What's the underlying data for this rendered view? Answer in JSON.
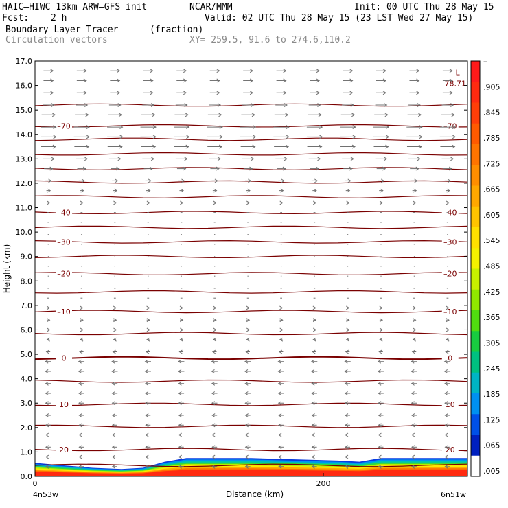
{
  "header": {
    "model": "HAIC–HIWC 13km ARW–GFS init",
    "center": "NCAR/MMM",
    "init": "Init: 00 UTC Thu 28 May 15",
    "fcst_label": "Fcst:",
    "fcst_value": "2 h",
    "valid": "Valid: 02 UTC Thu 28 May 15 (23 LST Wed 27 May 15)",
    "field": "Boundary Layer Tracer",
    "units": "(fraction)",
    "vectors": "Circulation vectors",
    "xy": "XY= 259.5, 91.6 to 274.6,110.2"
  },
  "chart_data": {
    "type": "heatmap",
    "ylabel": "Height (km)",
    "xlabel": "Distance (km)",
    "ylim": [
      0,
      17
    ],
    "xlim": [
      0,
      300
    ],
    "y_ticks": [
      "0.0",
      "1.0",
      "2.0",
      "3.0",
      "4.0",
      "5.0",
      "6.0",
      "7.0",
      "8.0",
      "9.0",
      "10.0",
      "11.0",
      "12.0",
      "13.0",
      "14.0",
      "15.0",
      "16.0",
      "17.0"
    ],
    "x_ticks": [
      {
        "value": 0,
        "label": "0"
      },
      {
        "value": 200,
        "label": "200"
      }
    ],
    "x_end_labels": {
      "left": "4n53w",
      "right": "6n51w"
    },
    "grid": false,
    "colorbar": {
      "labels": [
        "–",
        ".905",
        ".845",
        ".785",
        ".725",
        ".665",
        ".605",
        ".545",
        ".485",
        ".425",
        ".365",
        ".305",
        ".245",
        ".185",
        ".125",
        ".065",
        ".005"
      ],
      "colors": [
        "#ff1a1a",
        "#ff2a10",
        "#ff3e08",
        "#ff5a00",
        "#ff7400",
        "#ff8e00",
        "#ffa800",
        "#ffc400",
        "#ffe000",
        "#f4f000",
        "#c8f000",
        "#90e800",
        "#50dc10",
        "#18cc40",
        "#00c080",
        "#00b4c4",
        "#0090f0",
        "#0050e8",
        "#0020c0",
        "#ffffff"
      ]
    },
    "tracer_top_km": [
      {
        "x": 0,
        "y": 0.55
      },
      {
        "x": 20,
        "y": 0.45
      },
      {
        "x": 40,
        "y": 0.35
      },
      {
        "x": 60,
        "y": 0.3
      },
      {
        "x": 75,
        "y": 0.35
      },
      {
        "x": 90,
        "y": 0.6
      },
      {
        "x": 105,
        "y": 0.75
      },
      {
        "x": 150,
        "y": 0.75
      },
      {
        "x": 210,
        "y": 0.65
      },
      {
        "x": 225,
        "y": 0.6
      },
      {
        "x": 240,
        "y": 0.75
      },
      {
        "x": 300,
        "y": 0.75
      }
    ],
    "temperature_contours": [
      {
        "label": "20",
        "height_km": 1.1,
        "label_x": [
          20,
          288
        ]
      },
      {
        "label": "10",
        "height_km": 2.95,
        "label_x": [
          20,
          288
        ]
      },
      {
        "label": "0",
        "height_km": 4.85,
        "label_x": [
          20,
          288
        ]
      },
      {
        "label": "–10",
        "height_km": 6.75,
        "label_x": [
          20,
          288
        ]
      },
      {
        "label": "–20",
        "height_km": 8.3,
        "label_x": [
          20,
          288
        ]
      },
      {
        "label": "–30",
        "height_km": 9.6,
        "label_x": [
          20,
          288
        ]
      },
      {
        "label": "–40",
        "height_km": 10.8,
        "label_x": [
          20,
          288
        ]
      },
      {
        "label": "–70",
        "height_km": 14.35,
        "label_x": [
          20,
          288
        ]
      }
    ],
    "extra_contour_heights_km": [
      0.45,
      2.05,
      3.9,
      5.85,
      7.55,
      9.0,
      10.2,
      11.45,
      12.05,
      12.6,
      13.2,
      13.8,
      15.2
    ],
    "low_marker": {
      "symbol": "L",
      "value": "–78.71",
      "x": 296,
      "y": 16.2
    },
    "wind_vectors": [
      {
        "height_km": 16.6,
        "u": 1.0
      },
      {
        "height_km": 16.2,
        "u": 1.0
      },
      {
        "height_km": 15.7,
        "u": 1.0
      },
      {
        "height_km": 15.2,
        "u": 1.2
      },
      {
        "height_km": 14.8,
        "u": 1.4
      },
      {
        "height_km": 14.3,
        "u": 1.6
      },
      {
        "height_km": 13.9,
        "u": 1.6
      },
      {
        "height_km": 13.5,
        "u": 1.5
      },
      {
        "height_km": 13.0,
        "u": 1.2
      },
      {
        "height_km": 12.6,
        "u": 0.9
      },
      {
        "height_km": 12.1,
        "u": 0.6
      },
      {
        "height_km": 11.7,
        "u": 0.4
      },
      {
        "height_km": 11.2,
        "u": 0.3
      },
      {
        "height_km": 10.8,
        "u": 0.2
      },
      {
        "height_km": 10.4,
        "u": 0.15
      },
      {
        "height_km": 9.9,
        "u": 0.1
      },
      {
        "height_km": 9.5,
        "u": 0.1
      },
      {
        "height_km": 9.0,
        "u": 0.08
      },
      {
        "height_km": 8.6,
        "u": 0.08
      },
      {
        "height_km": 8.2,
        "u": 0.1
      },
      {
        "height_km": 7.7,
        "u": 0.15
      },
      {
        "height_km": 7.3,
        "u": 0.2
      },
      {
        "height_km": 6.9,
        "u": 0.25
      },
      {
        "height_km": 6.4,
        "u": 0.3
      },
      {
        "height_km": 6.0,
        "u": 0.3
      },
      {
        "height_km": 5.6,
        "u": -0.25
      },
      {
        "height_km": 5.1,
        "u": -0.4
      },
      {
        "height_km": 4.7,
        "u": -0.6
      },
      {
        "height_km": 4.3,
        "u": -0.6
      },
      {
        "height_km": 3.8,
        "u": -0.55
      },
      {
        "height_km": 3.4,
        "u": -0.55
      },
      {
        "height_km": 3.0,
        "u": -0.55
      },
      {
        "height_km": 2.5,
        "u": -0.5
      },
      {
        "height_km": 2.1,
        "u": -0.5
      },
      {
        "height_km": 1.7,
        "u": -0.5
      },
      {
        "height_km": 1.2,
        "u": -0.5
      },
      {
        "height_km": 0.8,
        "u": -0.5
      },
      {
        "height_km": 0.4,
        "u": -0.5
      }
    ],
    "colors": {
      "contour": "#7a0000",
      "vector": "#707070"
    }
  }
}
